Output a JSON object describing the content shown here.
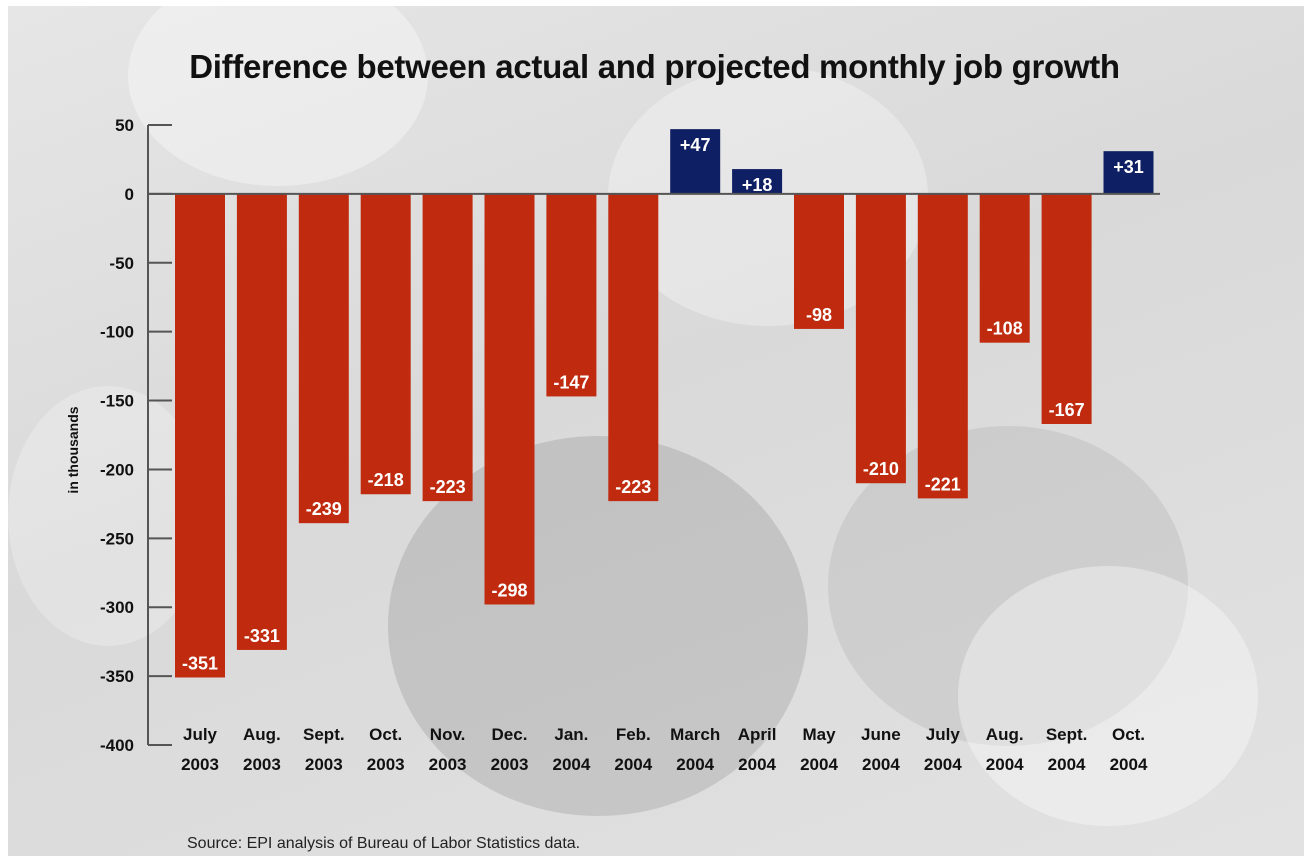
{
  "chart_data": {
    "type": "bar",
    "title": "Difference between actual and projected monthly job growth",
    "ylabel": "in thousands",
    "ylim": [
      -400,
      50
    ],
    "yticks": [
      "50",
      "0",
      "-50",
      "-100",
      "-150",
      "-200",
      "-250",
      "-300",
      "-350",
      "-400"
    ],
    "categories": [
      [
        "July",
        "2003"
      ],
      [
        "Aug.",
        "2003"
      ],
      [
        "Sept.",
        "2003"
      ],
      [
        "Oct.",
        "2003"
      ],
      [
        "Nov.",
        "2003"
      ],
      [
        "Dec.",
        "2003"
      ],
      [
        "Jan.",
        "2004"
      ],
      [
        "Feb.",
        "2004"
      ],
      [
        "March",
        "2004"
      ],
      [
        "April",
        "2004"
      ],
      [
        "May",
        "2004"
      ],
      [
        "June",
        "2004"
      ],
      [
        "July",
        "2004"
      ],
      [
        "Aug.",
        "2004"
      ],
      [
        "Sept.",
        "2004"
      ],
      [
        "Oct.",
        "2004"
      ]
    ],
    "values": [
      -351,
      -331,
      -239,
      -218,
      -223,
      -298,
      -147,
      -223,
      47,
      18,
      -98,
      -210,
      -221,
      -108,
      -167,
      31
    ],
    "data_labels": [
      "-351",
      "-331",
      "-239",
      "-218",
      "-223",
      "-298",
      "-147",
      "-223",
      "+47",
      "+18",
      "-98",
      "-210",
      "-221",
      "-108",
      "-167",
      "+31"
    ],
    "colors": {
      "negative": "#c02a0e",
      "positive": "#0f1f63"
    },
    "grid": false,
    "legend": "none",
    "source": "Source: EPI analysis of Bureau of Labor Statistics data."
  }
}
